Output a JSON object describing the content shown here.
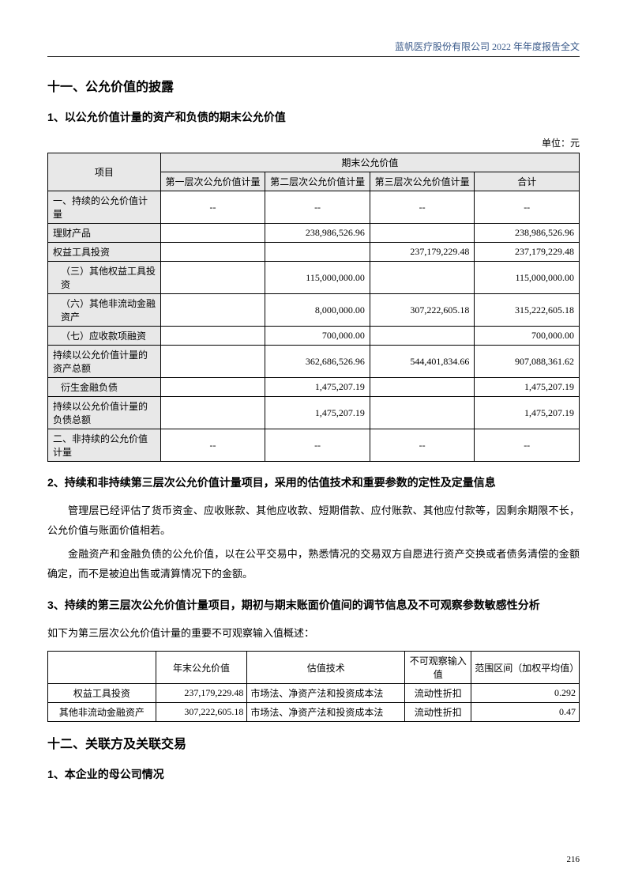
{
  "header": "蓝帆医疗股份有限公司 2022 年年度报告全文",
  "s11_title": "十一、公允价值的披露",
  "s11_1_title": "1、以公允价值计量的资产和负债的期末公允价值",
  "unit_label": "单位：元",
  "tbl1": {
    "col_item": "项目",
    "col_group": "期末公允价值",
    "col_l1": "第一层次公允价值计量",
    "col_l2": "第二层次公允价值计量",
    "col_l3": "第三层次公允价值计量",
    "col_total": "合计",
    "rows": [
      {
        "label": "一、持续的公允价值计量",
        "indent": false,
        "l1": "--",
        "l2": "--",
        "l3": "--",
        "tot": "--",
        "dash": true
      },
      {
        "label": "理财产品",
        "indent": false,
        "l1": "",
        "l2": "238,986,526.96",
        "l3": "",
        "tot": "238,986,526.96"
      },
      {
        "label": "权益工具投资",
        "indent": false,
        "l1": "",
        "l2": "",
        "l3": "237,179,229.48",
        "tot": "237,179,229.48"
      },
      {
        "label": "（三）其他权益工具投资",
        "indent": true,
        "l1": "",
        "l2": "115,000,000.00",
        "l3": "",
        "tot": "115,000,000.00"
      },
      {
        "label": "（六）其他非流动金融资产",
        "indent": true,
        "l1": "",
        "l2": "8,000,000.00",
        "l3": "307,222,605.18",
        "tot": "315,222,605.18"
      },
      {
        "label": "（七）应收款项融资",
        "indent": true,
        "l1": "",
        "l2": "700,000.00",
        "l3": "",
        "tot": "700,000.00"
      },
      {
        "label": "持续以公允价值计量的资产总额",
        "indent": false,
        "l1": "",
        "l2": "362,686,526.96",
        "l3": "544,401,834.66",
        "tot": "907,088,361.62"
      },
      {
        "label": "衍生金融负债",
        "indent": true,
        "l1": "",
        "l2": "1,475,207.19",
        "l3": "",
        "tot": "1,475,207.19"
      },
      {
        "label": "持续以公允价值计量的负债总额",
        "indent": false,
        "l1": "",
        "l2": "1,475,207.19",
        "l3": "",
        "tot": "1,475,207.19"
      },
      {
        "label": "二、非持续的公允价值计量",
        "indent": false,
        "l1": "--",
        "l2": "--",
        "l3": "--",
        "tot": "--",
        "dash": true
      }
    ]
  },
  "s11_2_title": "2、持续和非持续第三层次公允价值计量项目，采用的估值技术和重要参数的定性及定量信息",
  "s11_2_p1": "管理层已经评估了货币资金、应收账款、其他应收款、短期借款、应付账款、其他应付款等，因剩余期限不长，公允价值与账面价值相若。",
  "s11_2_p2": "金融资产和金融负债的公允价值，以在公平交易中，熟悉情况的交易双方自愿进行资产交换或者债务清偿的金额确定，而不是被迫出售或清算情况下的金额。",
  "s11_3_title": "3、持续的第三层次公允价值计量项目，期初与期末账面价值间的调节信息及不可观察参数敏感性分析",
  "s11_3_intro": "如下为第三层次公允价值计量的重要不可观察输入值概述：",
  "tbl2": {
    "col_blank": "",
    "col_fv": "年末公允价值",
    "col_tech": "估值技术",
    "col_unobs": "不可观察输入值",
    "col_range": "范围区间（加权平均值）",
    "rows": [
      {
        "label": "权益工具投资",
        "fv": "237,179,229.48",
        "tech": "市场法、净资产法和投资成本法",
        "unobs": "流动性折扣",
        "range": "0.292"
      },
      {
        "label": "其他非流动金融资产",
        "fv": "307,222,605.18",
        "tech": "市场法、净资产法和投资成本法",
        "unobs": "流动性折扣",
        "range": "0.47"
      }
    ]
  },
  "s12_title": "十二、关联方及关联交易",
  "s12_1_title": "1、本企业的母公司情况",
  "page_number": "216"
}
